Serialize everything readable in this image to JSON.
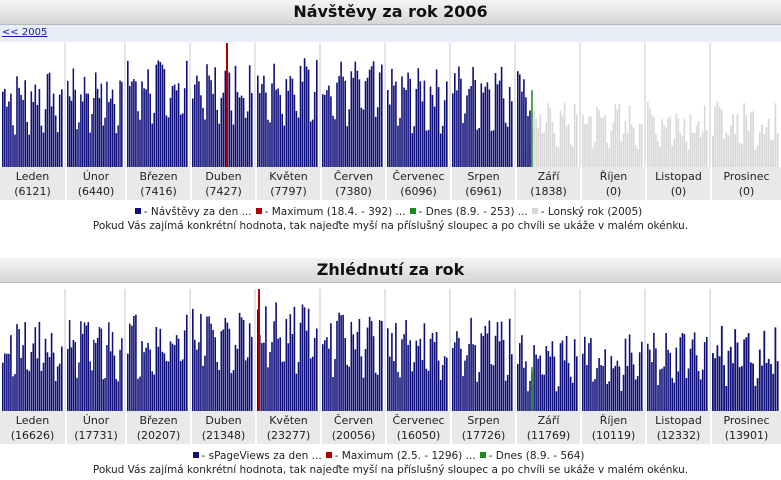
{
  "charts": [
    {
      "title": "Návštěvy za rok 2006",
      "back_link": "<< 2005",
      "months": [
        {
          "name": "Leden",
          "total": "(6121)"
        },
        {
          "name": "Únor",
          "total": "(6440)"
        },
        {
          "name": "Březen",
          "total": "(7416)"
        },
        {
          "name": "Duben",
          "total": "(7427)"
        },
        {
          "name": "Květen",
          "total": "(7797)"
        },
        {
          "name": "Červen",
          "total": "(7380)"
        },
        {
          "name": "Červenec",
          "total": "(6096)"
        },
        {
          "name": "Srpen",
          "total": "(6961)"
        },
        {
          "name": "Září",
          "total": "(1838)"
        },
        {
          "name": "Říjen",
          "total": "(0)"
        },
        {
          "name": "Listopad",
          "total": "(0)"
        },
        {
          "name": "Prosinec",
          "total": "(0)"
        }
      ],
      "legend": [
        {
          "text": "- Návštěvy za den ...",
          "color": "#10107a"
        },
        {
          "text": "- Maximum (18.4. - 392) ...",
          "color": "#b00000"
        },
        {
          "text": "- Dnes (8.9. - 253) ...",
          "color": "#1a8a1a"
        },
        {
          "text": "- Lonský rok (2005)",
          "color": "#d8d8d8"
        }
      ],
      "hint": "Pokud Vás zajímá konkrétní hodnota, tak najeďte myší na příslušný sloupec a po chvíli se ukáže v malém okénku."
    },
    {
      "title": "Zhlédnutí za rok",
      "months": [
        {
          "name": "Leden",
          "total": "(16626)"
        },
        {
          "name": "Únor",
          "total": "(17731)"
        },
        {
          "name": "Březen",
          "total": "(20207)"
        },
        {
          "name": "Duben",
          "total": "(21348)"
        },
        {
          "name": "Květen",
          "total": "(23277)"
        },
        {
          "name": "Červen",
          "total": "(20056)"
        },
        {
          "name": "Červenec",
          "total": "(16050)"
        },
        {
          "name": "Srpen",
          "total": "(17726)"
        },
        {
          "name": "Září",
          "total": "(11769)"
        },
        {
          "name": "Říjen",
          "total": "(10119)"
        },
        {
          "name": "Listopad",
          "total": "(12332)"
        },
        {
          "name": "Prosinec",
          "total": "(13901)"
        }
      ],
      "legend": [
        {
          "text": "- sPageViews za den ...",
          "color": "#10107a"
        },
        {
          "text": "- Maximum (2.5. - 1296) ...",
          "color": "#b00000"
        },
        {
          "text": "- Dnes (8.9. - 564)",
          "color": "#1a8a1a"
        }
      ],
      "hint": "Pokud Vás zajímá konkrétní hodnota, tak najeďte myší na příslušný sloupec a po chvíli se ukáže v malém okénku."
    }
  ],
  "colors": {
    "bar": "#10107a",
    "maximum": "#b00000",
    "today": "#1a8a1a",
    "last_year": "#d8d8d8",
    "divider": "#e4e4e4"
  }
}
